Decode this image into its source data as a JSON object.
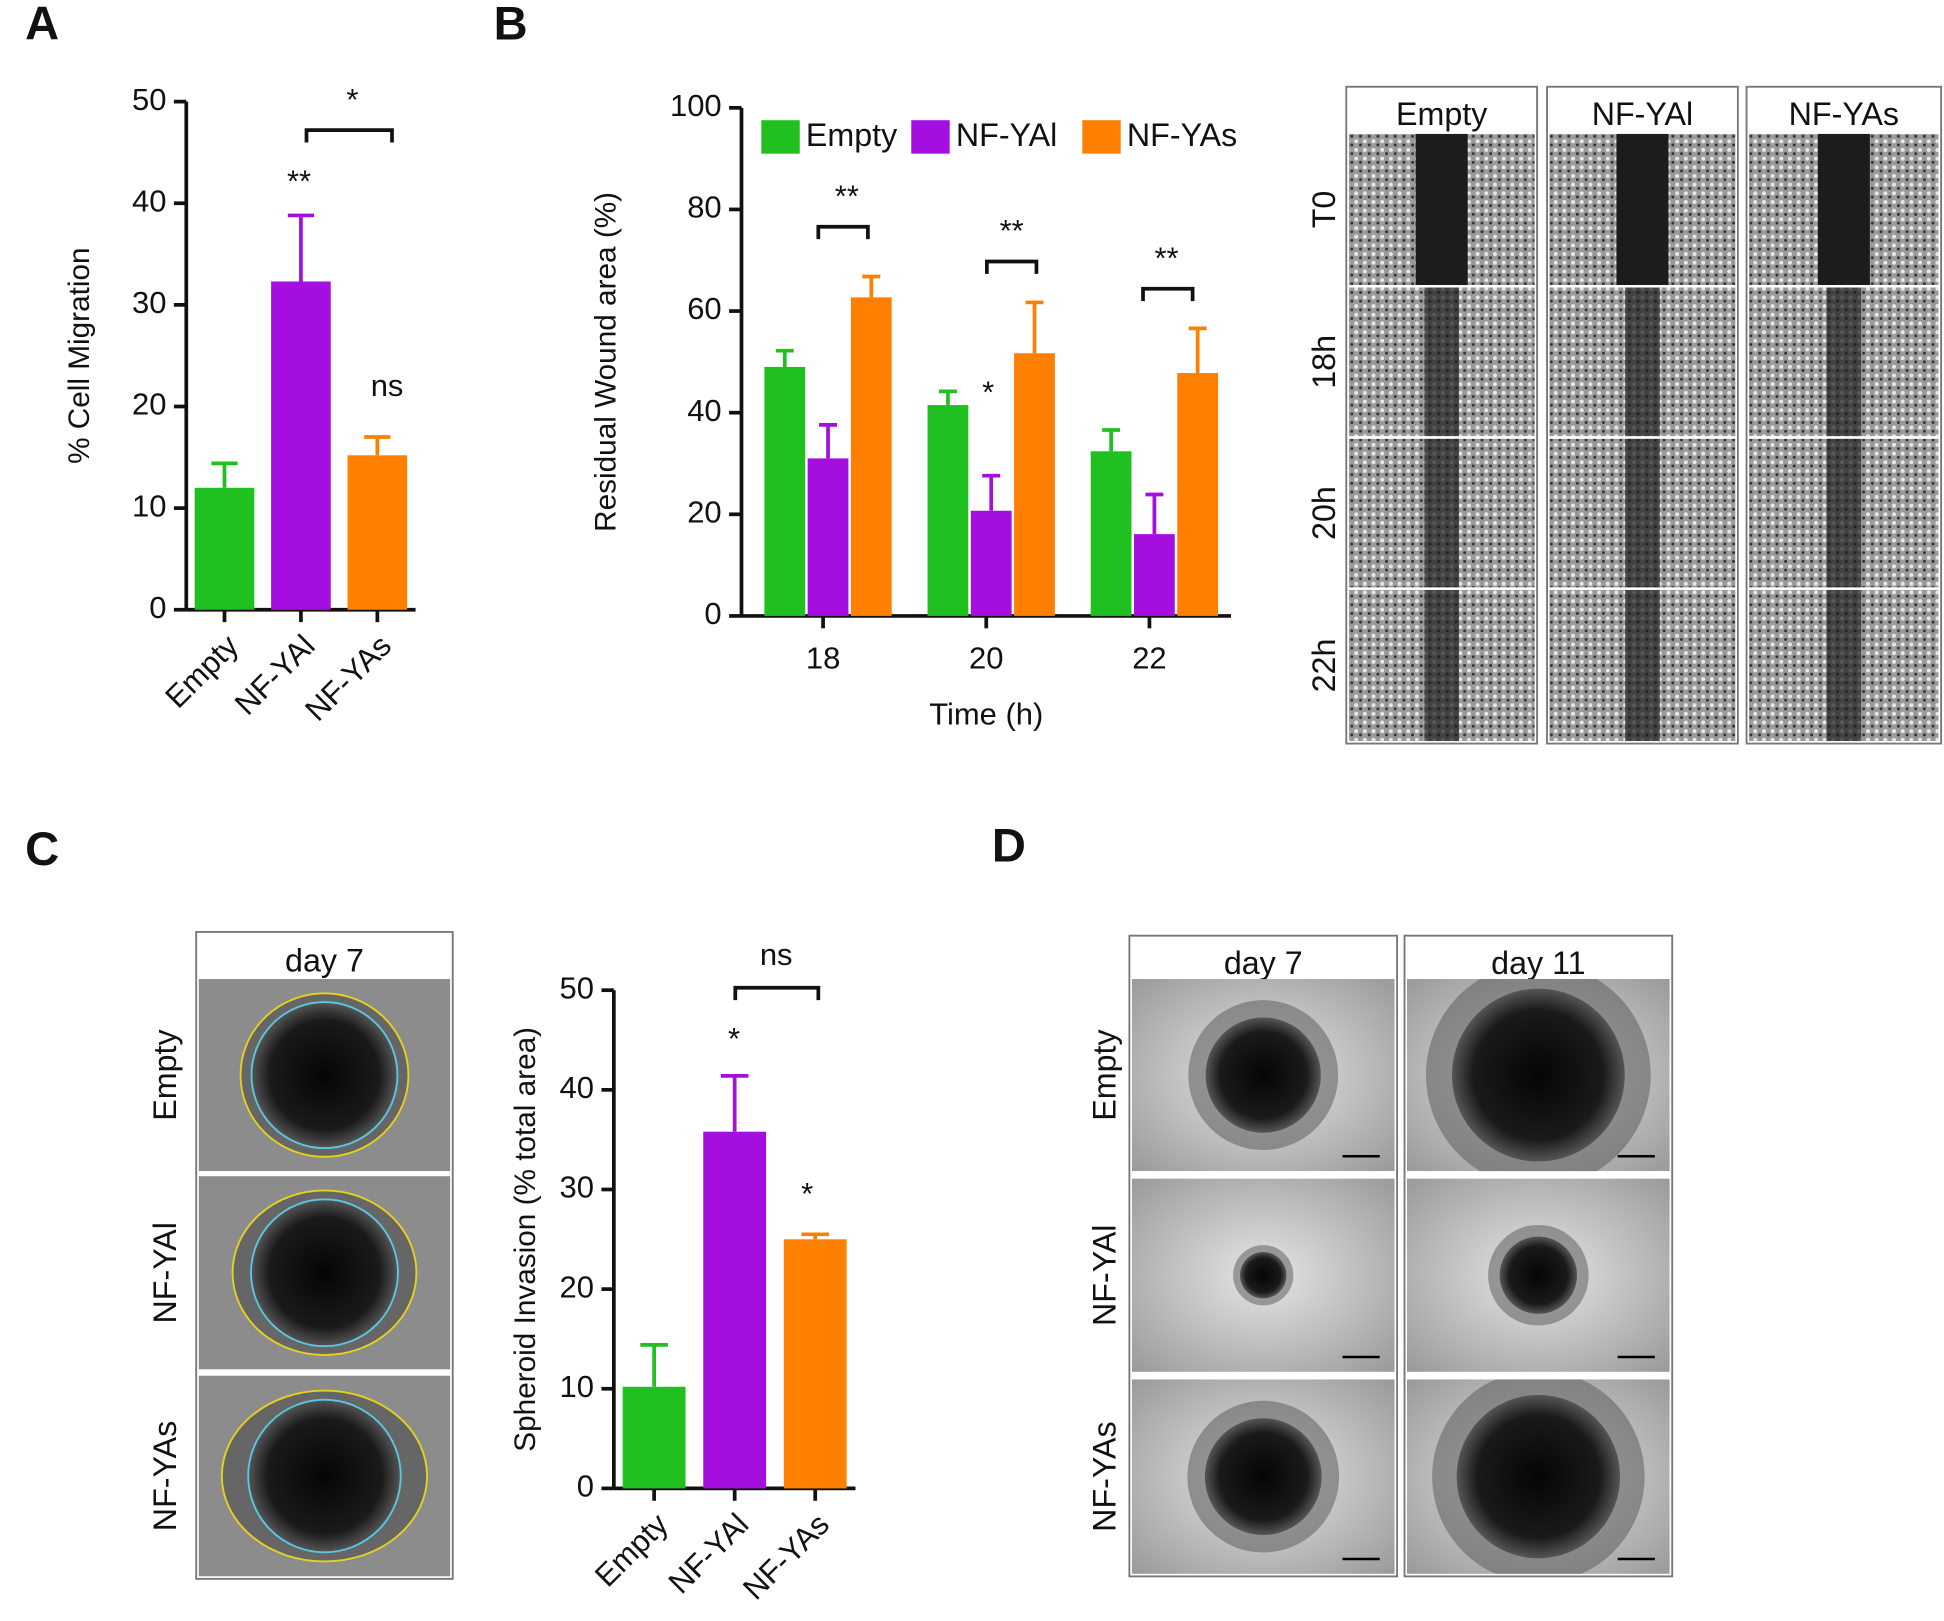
{
  "panel_labels": [
    "A",
    "B",
    "C",
    "D"
  ],
  "chart_data": [
    {
      "type": "bar",
      "ylabel": "% Cell Migration",
      "categories": [
        "Empty",
        "NF-YAl",
        "NF-YAs"
      ],
      "values": [
        12,
        32.3,
        15.2
      ],
      "errors": [
        2.4,
        6.5,
        1.8
      ],
      "colors": [
        "#20c020",
        "#a40fe0",
        "#ff8000"
      ],
      "ylim": [
        0,
        50
      ],
      "yticks": [
        0,
        10,
        20,
        30,
        40,
        50
      ],
      "annotations": [
        "**",
        "ns",
        "*"
      ]
    },
    {
      "type": "grouped-bar",
      "xlabel": "Time (h)",
      "ylabel": "Residual Wound area (%)",
      "categories": [
        "18",
        "20",
        "22"
      ],
      "series": [
        {
          "name": "Empty",
          "color": "#20c020",
          "values": [
            49,
            41.5,
            32.4
          ],
          "errors": [
            3.2,
            2.7,
            4.2
          ]
        },
        {
          "name": "NF-YAl",
          "color": "#a40fe0",
          "values": [
            31,
            20.7,
            16.1
          ],
          "errors": [
            6.6,
            6.9,
            7.8
          ]
        },
        {
          "name": "NF-YAs",
          "color": "#ff8000",
          "values": [
            62.7,
            51.7,
            47.8
          ],
          "errors": [
            4.1,
            10,
            8.8
          ]
        }
      ],
      "ylim": [
        0,
        100
      ],
      "yticks": [
        0,
        20,
        40,
        60,
        80,
        100
      ],
      "annotations": [
        "**",
        "**",
        "**",
        "*"
      ]
    },
    {
      "type": "bar",
      "ylabel": "Spheroid Invasion (% total area)",
      "categories": [
        "Empty",
        "NF-YAl",
        "NF-YAs"
      ],
      "values": [
        10.2,
        35.8,
        25
      ],
      "errors": [
        4.2,
        5.6,
        0.5
      ],
      "colors": [
        "#20c020",
        "#a40fe0",
        "#ff8000"
      ],
      "ylim": [
        0,
        50
      ],
      "yticks": [
        0,
        10,
        20,
        30,
        40,
        50
      ],
      "annotations": [
        "*",
        "*",
        "ns"
      ]
    }
  ],
  "micrographs": [
    {
      "columns": [
        "Empty",
        "NF-YAl",
        "NF-YAs"
      ],
      "rows": [
        "T0",
        "18h",
        "20h",
        "22h"
      ]
    },
    {
      "columns": [
        "day 7"
      ],
      "rows": [
        "Empty",
        "NF-YAl",
        "NF-YAs"
      ]
    },
    {
      "columns": [
        "day 7",
        "day 11"
      ],
      "rows": [
        "Empty",
        "NF-YAl",
        "NF-YAs"
      ]
    }
  ]
}
